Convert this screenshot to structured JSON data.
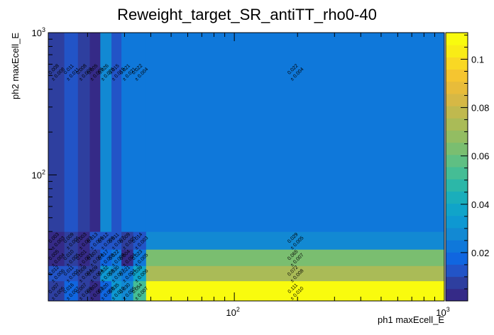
{
  "chart_data": {
    "type": "heatmap",
    "title": "Reweight_target_SR_antiTT_rho0-40",
    "xlabel": "ph1 maxEcell_E",
    "ylabel": "ph2 maxEcell_E",
    "x_scale": "log",
    "y_scale": "log",
    "xlim": [
      13,
      1000
    ],
    "ylim": [
      13,
      1000
    ],
    "x_tick_labels": [
      "10^2",
      "10^3"
    ],
    "y_tick_labels": [
      "10^2",
      "10^3"
    ],
    "x_edges": [
      13,
      15.5,
      18,
      20.5,
      23,
      26,
      29,
      33,
      38,
      1000
    ],
    "y_edges": [
      13,
      18,
      23,
      30,
      40,
      1000
    ],
    "cells": [
      [
        0.007,
        0.016,
        0.007,
        0.003,
        0.02,
        0.035,
        0.03,
        0.054,
        0.111
      ],
      [
        0.012,
        0.011,
        0.009,
        0.009,
        0.032,
        0.03,
        0.021,
        0.039,
        0.072
      ],
      [
        0.005,
        0.01,
        0.001,
        0.007,
        0.017,
        0.022,
        0.004,
        0.023,
        0.065
      ],
      [
        0.003,
        0.009,
        0.003,
        0.013,
        0.012,
        0.011,
        0.009,
        0.014,
        0.029
      ],
      [
        0.008,
        0.011,
        0.008,
        0.005,
        0.026,
        0.015,
        0.021,
        0.022,
        0.022
      ]
    ],
    "cell_labels": [
      [
        {
          "v": "0.007",
          "e": "± 0.005"
        },
        {
          "v": "0.016",
          "e": "± 0.007"
        },
        {
          "v": "0.007",
          "e": "± 0.006"
        },
        {
          "v": "0.003",
          "e": "± 0.003"
        },
        {
          "v": "0.020",
          "e": "± 0.008"
        },
        {
          "v": "0.035",
          "e": "± 0.010"
        },
        {
          "v": "0.030",
          "e": "± 0.005"
        },
        {
          "v": "0.054",
          "e": "± 0.007"
        },
        {
          "v": "0.111",
          "e": "± 0.010"
        }
      ],
      [
        {
          "v": "0.012",
          "e": "± 0.006"
        },
        {
          "v": "0.011",
          "e": "± 0.006"
        },
        {
          "v": "0.009",
          "e": "± 0.004"
        },
        {
          "v": "0.009",
          "e": "± 0.004"
        },
        {
          "v": "0.032",
          "e": "± 0.008"
        },
        {
          "v": "0.030",
          "e": "± 0.007"
        },
        {
          "v": "0.021",
          "e": "± 0.004"
        },
        {
          "v": "0.039",
          "e": "± 0.006"
        },
        {
          "v": "0.072",
          "e": "± 0.008"
        }
      ],
      [
        {
          "v": "0.005",
          "e": "± 0.004"
        },
        {
          "v": "0.010",
          "e": "± 0.005"
        },
        {
          "v": "0.001",
          "e": "± 0.001"
        },
        {
          "v": "0.007",
          "e": "± 0.004"
        },
        {
          "v": "0.017",
          "e": "± 0.008"
        },
        {
          "v": "0.022",
          "e": "± 0.008"
        },
        {
          "v": "0.004",
          "e": "± 0.004"
        },
        {
          "v": "0.023",
          "e": "± 0.005"
        },
        {
          "v": "0.065",
          "e": "± 0.007"
        }
      ],
      [
        {
          "v": "0.003",
          "e": "± 0.003"
        },
        {
          "v": "0.009",
          "e": "± 0.006"
        },
        {
          "v": "0.003",
          "e": "± 0.003"
        },
        {
          "v": "0.013",
          "e": "± 0.006"
        },
        {
          "v": "0.012",
          "e": "± 0.006"
        },
        {
          "v": "0.011",
          "e": "± 0.007"
        },
        {
          "v": "0.009",
          "e": "± 0.005"
        },
        {
          "v": "0.014",
          "e": "± 0.003"
        },
        {
          "v": "0.029",
          "e": "± 0.005"
        }
      ],
      [
        {
          "v": "0.008",
          "e": "± 0.008"
        },
        {
          "v": "0.011",
          "e": "± 0.011"
        },
        {
          "v": "0.008",
          "e": "± 0.008"
        },
        {
          "v": "0.005",
          "e": "± 0.005"
        },
        {
          "v": "0.026",
          "e": "± 0.026"
        },
        {
          "v": "0.015",
          "e": "± 0.015"
        },
        {
          "v": "0.021",
          "e": "± 0.021"
        },
        {
          "v": "0.022",
          "e": "± 0.004"
        },
        {
          "v": "0.022",
          "e": "± 0.004"
        }
      ]
    ],
    "zlim": [
      0,
      0.111
    ],
    "colorbar_ticks": [
      {
        "value": 0.02,
        "label": "0.02"
      },
      {
        "value": 0.04,
        "label": "0.04"
      },
      {
        "value": 0.06,
        "label": "0.06"
      },
      {
        "value": 0.08,
        "label": "0.08"
      },
      {
        "value": 0.1,
        "label": "0.1"
      }
    ],
    "palette": [
      "#352a87",
      "#2e3f9f",
      "#2254c7",
      "#1066e0",
      "#0f78da",
      "#1289d3",
      "#0e98d2",
      "#10a4c9",
      "#1aaebb",
      "#2cb7a8",
      "#45bd95",
      "#5fbf83",
      "#7abe70",
      "#93bd62",
      "#aabb57",
      "#c0b94e",
      "#d6b845",
      "#e8bc3a",
      "#f5c530",
      "#f9d824",
      "#f9ec16",
      "#f9fb0e"
    ]
  }
}
